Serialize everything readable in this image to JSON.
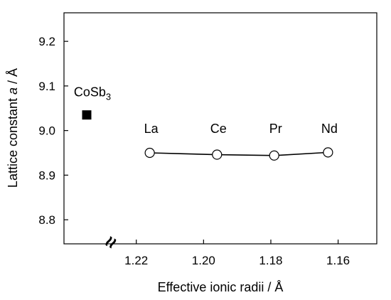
{
  "chart_data": {
    "type": "scatter",
    "xlabel": "Effective ionic radii / Å",
    "ylabel_parts": [
      "Lattice constant ",
      "a",
      " / Å"
    ],
    "xlim": [
      1.2415,
      1.1485
    ],
    "ylim": [
      8.746,
      9.264
    ],
    "x_ticks": [
      1.22,
      1.2,
      1.18,
      1.16
    ],
    "x_tick_labels": [
      "1.22",
      "1.20",
      "1.18",
      "1.16"
    ],
    "y_ticks": [
      8.8,
      8.9,
      9.0,
      9.1,
      9.2
    ],
    "y_tick_labels": [
      "8.8",
      "8.9",
      "9.0",
      "9.1",
      "9.2"
    ],
    "axis_break_symbol": "≈",
    "reference": {
      "label": "CoSb",
      "label_subscript": "3",
      "y": 9.035,
      "marker": "filled-square"
    },
    "series": [
      {
        "marker": "open-circle",
        "connected": true,
        "points": [
          {
            "label": "La",
            "x": 1.216,
            "y": 8.95
          },
          {
            "label": "Ce",
            "x": 1.196,
            "y": 8.946
          },
          {
            "label": "Pr",
            "x": 1.179,
            "y": 8.944
          },
          {
            "label": "Nd",
            "x": 1.163,
            "y": 8.951
          }
        ]
      }
    ],
    "grid": false,
    "legend": "none"
  }
}
